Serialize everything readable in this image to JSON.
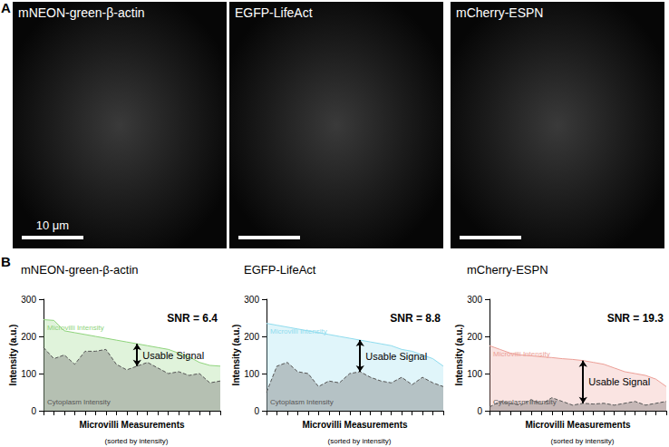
{
  "figure": {
    "panel_a": {
      "label": "A",
      "images": [
        {
          "title": "mNEON-green-β-actin",
          "scale_bar_label": "10 μm"
        },
        {
          "title": "EGFP-LifeAct"
        },
        {
          "title": "mCherry-ESPN"
        }
      ]
    },
    "panel_b": {
      "label": "B"
    }
  },
  "chart_data": [
    {
      "type": "area",
      "title": "mNEON-green-β-actin",
      "subtitle": "SNR = 6.4",
      "x_label": "Microvilli Measurements",
      "x_label_note": "(sorted by intensity)",
      "y_label": "Intensity (a.u.)",
      "annotation": "Usable Signal",
      "categories": [
        null,
        null,
        null,
        null,
        null,
        null,
        null,
        null,
        null,
        null,
        null,
        null,
        null,
        null,
        null,
        null,
        null,
        null
      ],
      "series": [
        {
          "name": "Microvilli Intensity",
          "color": "#8fd47c",
          "line_style": "solid",
          "values": [
            245,
            243,
            215,
            210,
            205,
            200,
            195,
            190,
            185,
            180,
            175,
            170,
            165,
            155,
            145,
            130,
            122,
            120
          ]
        },
        {
          "name": "Cytoplasm Intensity",
          "color": "#6f6f6f",
          "line_style": "dashed",
          "values": [
            170,
            140,
            150,
            125,
            160,
            160,
            165,
            125,
            110,
            120,
            130,
            115,
            100,
            105,
            95,
            100,
            75,
            80
          ]
        }
      ],
      "ylim": [
        0,
        300
      ],
      "yticks": [
        0,
        100,
        200,
        300
      ],
      "grid": false,
      "tick_labels": "y"
    },
    {
      "type": "area",
      "title": "EGFP-LifeAct",
      "subtitle": "SNR = 8.8",
      "x_label": "Microvilli Measurements",
      "x_label_note": "(sorted by intensity)",
      "y_label": "Intensity (a.u.)",
      "annotation": "Usable Signal",
      "categories": [
        null,
        null,
        null,
        null,
        null,
        null,
        null,
        null,
        null,
        null,
        null,
        null,
        null,
        null,
        null,
        null,
        null,
        null
      ],
      "series": [
        {
          "name": "Microvilli Intensity",
          "color": "#8fdcee",
          "line_style": "solid",
          "values": [
            235,
            230,
            225,
            220,
            215,
            210,
            205,
            200,
            195,
            190,
            185,
            180,
            175,
            165,
            160,
            150,
            140,
            120
          ]
        },
        {
          "name": "Cytoplasm Intensity",
          "color": "#6f6f6f",
          "line_style": "dashed",
          "values": [
            50,
            120,
            130,
            105,
            100,
            65,
            80,
            75,
            100,
            105,
            90,
            80,
            75,
            90,
            70,
            90,
            75,
            65
          ]
        }
      ],
      "ylim": [
        0,
        300
      ],
      "yticks": [
        0,
        100,
        200,
        300
      ],
      "grid": false,
      "tick_labels": "y"
    },
    {
      "type": "area",
      "title": "mCherry-ESPN",
      "subtitle": "SNR = 19.3",
      "x_label": "Microvilli Measurements",
      "x_label_note": "(sorted by intensity)",
      "y_label": "Intensity (a.u.)",
      "annotation": "Usable Signal",
      "categories": [
        null,
        null,
        null,
        null,
        null,
        null,
        null,
        null,
        null,
        null,
        null,
        null,
        null,
        null,
        null,
        null,
        null,
        null
      ],
      "series": [
        {
          "name": "Microvilli Intensity",
          "color": "#ec9f97",
          "line_style": "solid",
          "values": [
            175,
            165,
            155,
            150,
            148,
            145,
            143,
            140,
            138,
            135,
            130,
            125,
            115,
            105,
            100,
            95,
            85,
            65
          ]
        },
        {
          "name": "Cytoplasm Intensity",
          "color": "#6f6f6f",
          "line_style": "dashed",
          "values": [
            10,
            25,
            20,
            15,
            30,
            18,
            35,
            25,
            15,
            20,
            18,
            20,
            15,
            20,
            25,
            15,
            20,
            25
          ]
        }
      ],
      "ylim": [
        0,
        300
      ],
      "yticks": [
        0,
        100,
        200,
        300
      ],
      "grid": false,
      "tick_labels": "y"
    }
  ]
}
